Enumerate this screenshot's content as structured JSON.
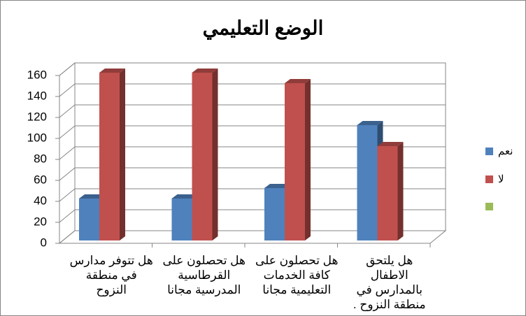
{
  "chart_data": {
    "type": "bar3d",
    "title": "الوضع التعليمي",
    "categories": [
      "هل تتوفر مدارس في منطقة النزوح",
      "هل تحصلون على القرطاسية المدرسية مجانا",
      "هل تحصلون على كافة الخدمات التعليمية مجانا",
      "هل يلتحق الاطفال بالمدارس في منطقة النزوح ."
    ],
    "series": [
      {
        "name": "نعم",
        "color": "#4f81bd",
        "values": [
          40,
          40,
          50,
          110
        ]
      },
      {
        "name": "لا",
        "color": "#c0504d",
        "values": [
          160,
          160,
          150,
          90
        ]
      }
    ],
    "ylim": [
      0,
      160
    ],
    "yticks": [
      0,
      20,
      40,
      60,
      80,
      100,
      120,
      140,
      160
    ],
    "grid": true
  }
}
